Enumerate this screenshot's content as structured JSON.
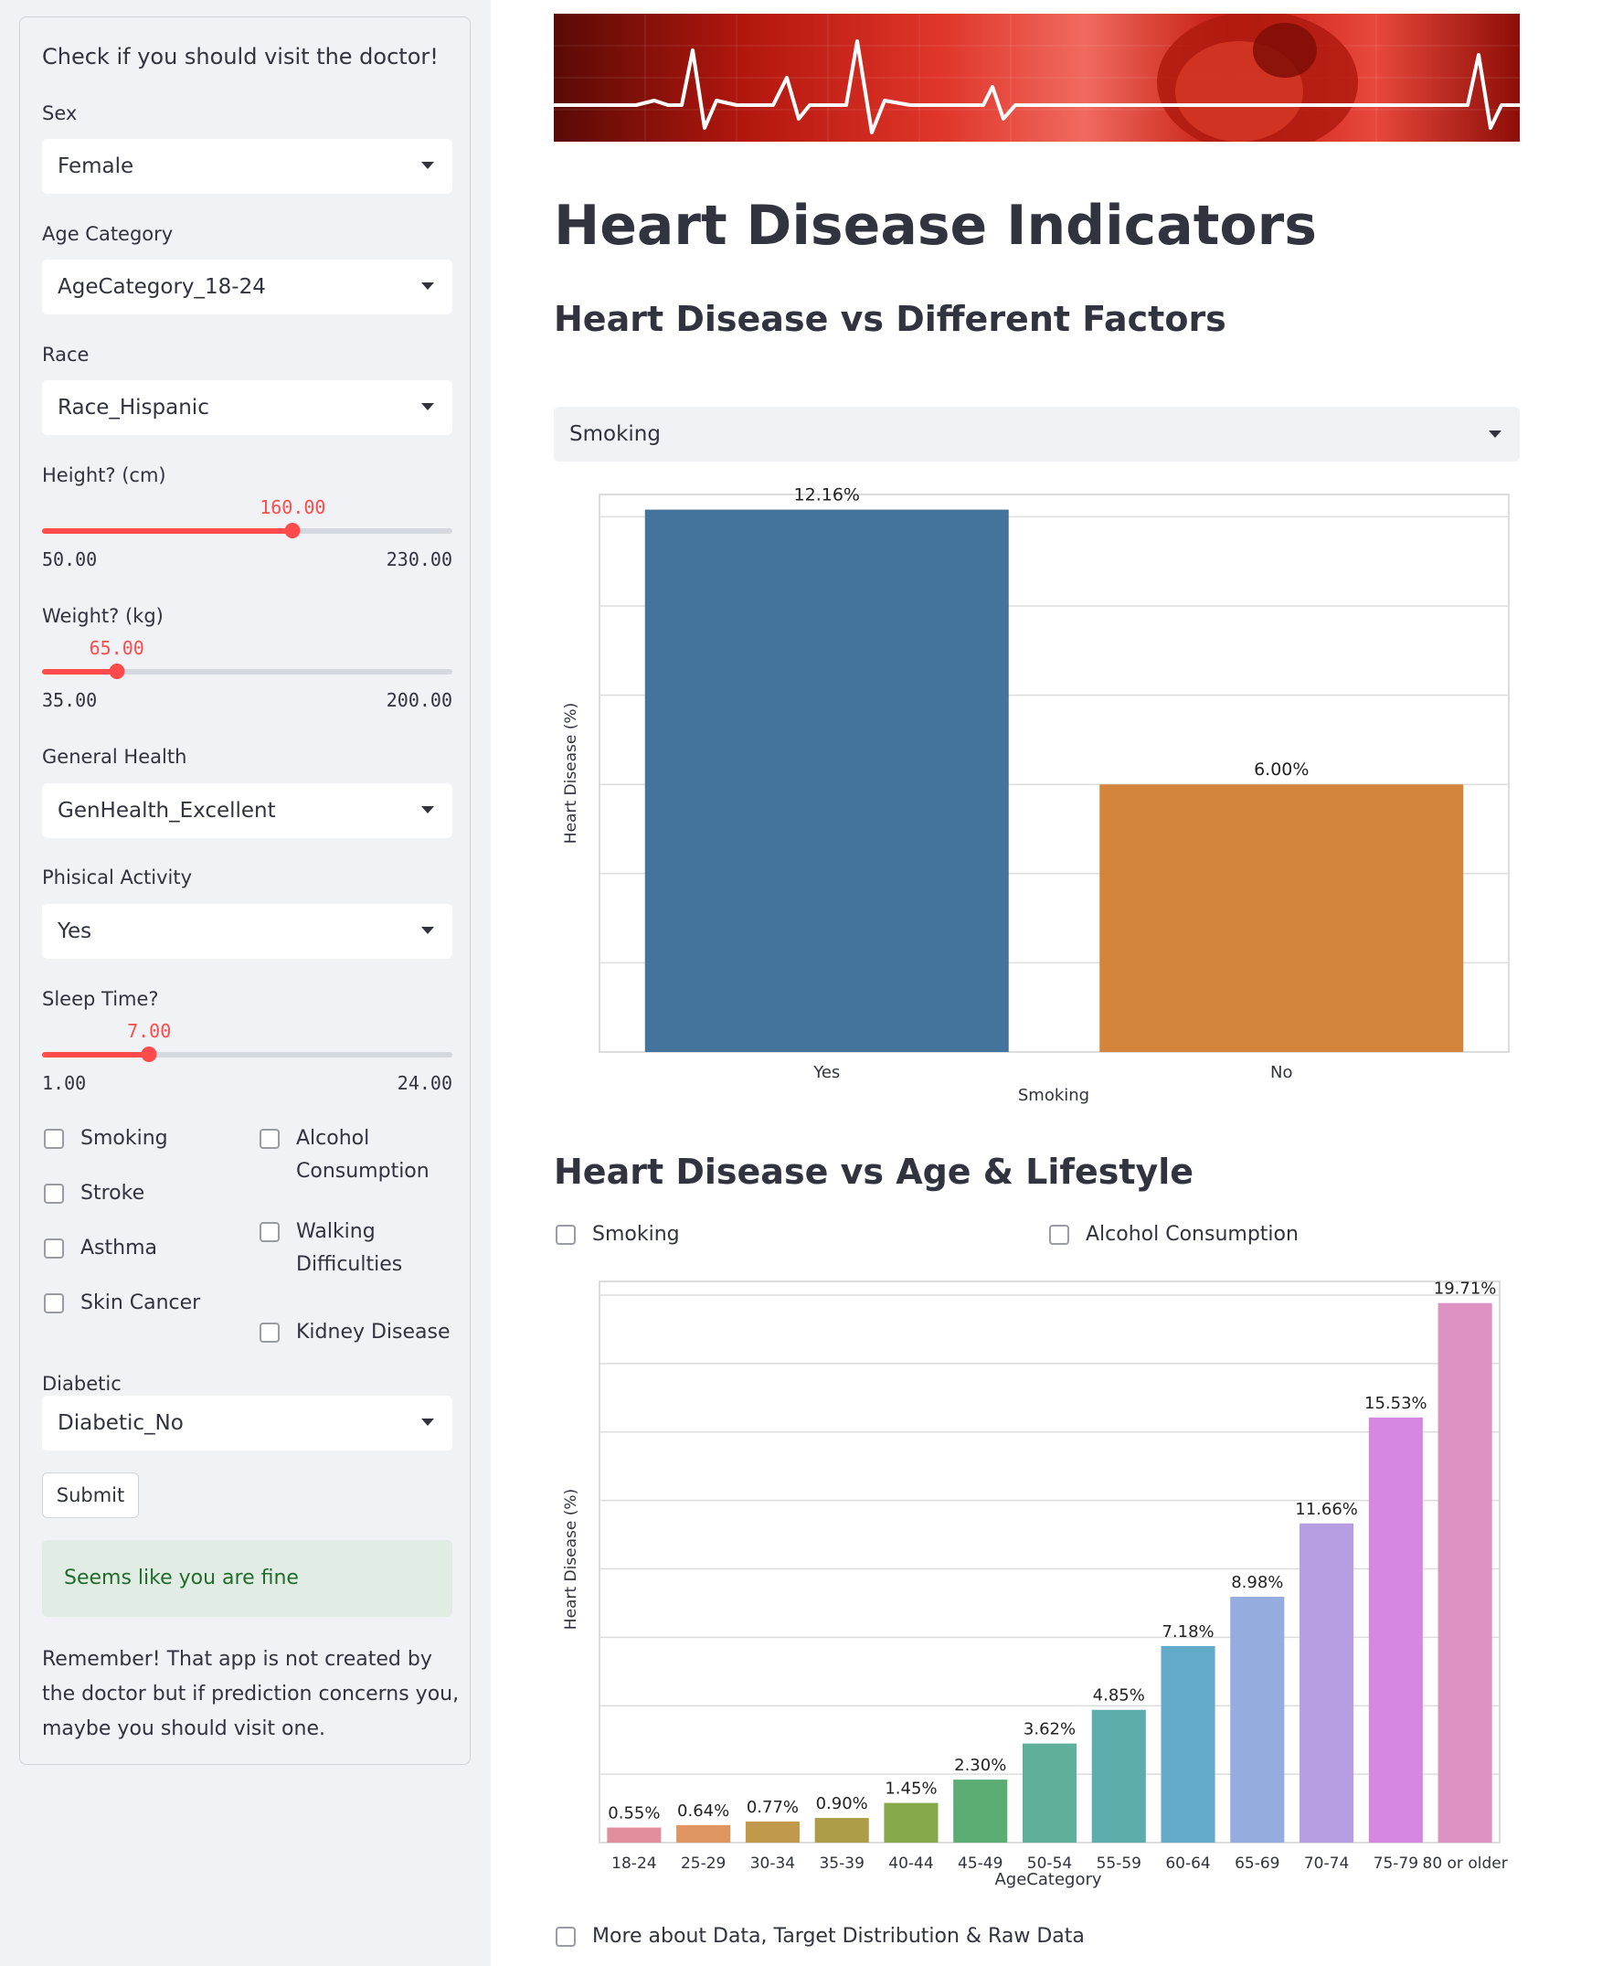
{
  "sidebar": {
    "heading": "Check if you should visit the doctor!",
    "sex": {
      "label": "Sex",
      "value": "Female"
    },
    "age": {
      "label": "Age Category",
      "value": "AgeCategory_18-24"
    },
    "race": {
      "label": "Race",
      "value": "Race_Hispanic"
    },
    "height": {
      "label": "Height? (cm)",
      "value": "160.00",
      "min": "50.00",
      "max": "230.00",
      "fraction": 0.611
    },
    "weight": {
      "label": "Weight? (kg)",
      "value": "65.00",
      "min": "35.00",
      "max": "200.00",
      "fraction": 0.182
    },
    "gen_health": {
      "label": "General Health",
      "value": "GenHealth_Excellent"
    },
    "activity": {
      "label": "Phisical Activity",
      "value": "Yes"
    },
    "sleep": {
      "label": "Sleep Time?",
      "value": "7.00",
      "min": "1.00",
      "max": "24.00",
      "fraction": 0.261
    },
    "checkboxes": {
      "smoking": "Smoking",
      "stroke": "Stroke",
      "asthma": "Asthma",
      "skin_cancer": "Skin Cancer",
      "alcohol_line1": "Alcohol",
      "alcohol_line2": "Consumption",
      "walking_line1": "Walking",
      "walking_line2": "Difficulties",
      "kidney": "Kidney Disease"
    },
    "diabetic": {
      "label": "Diabetic",
      "value": "Diabetic_No"
    },
    "submit_label": "Submit",
    "result": "Seems like you are fine",
    "note": "Remember! That app is not created by the doctor but if prediction concerns you, maybe you should visit one."
  },
  "main": {
    "title": "Heart Disease Indicators",
    "section1": "Heart Disease vs Different Factors",
    "factor_select": "Smoking",
    "section2": "Heart Disease vs Age & Lifestyle",
    "lifestyle_checkboxes": {
      "smoking": "Smoking",
      "alcohol": "Alcohol Consumption"
    },
    "more_data": "More about Data, Target Distribution & Raw Data"
  },
  "colors": {
    "accent": "#ff4b4b",
    "success_bg": "#e1ede4",
    "success_text": "#216c2a"
  },
  "chart_data": [
    {
      "type": "bar",
      "categories": [
        "Yes",
        "No"
      ],
      "values": [
        12.16,
        6.0
      ],
      "labels": [
        "12.16%",
        "6.00%"
      ],
      "colors": [
        "#44739c",
        "#d5843c"
      ],
      "xlabel": "Smoking",
      "ylabel": "Heart Disease (%)",
      "ylim": [
        0,
        12.5
      ],
      "grid": true
    },
    {
      "type": "bar",
      "categories": [
        "18-24",
        "25-29",
        "30-34",
        "35-39",
        "40-44",
        "45-49",
        "50-54",
        "55-59",
        "60-64",
        "65-69",
        "70-74",
        "75-79",
        "80 or older"
      ],
      "values": [
        0.55,
        0.64,
        0.77,
        0.9,
        1.45,
        2.3,
        3.62,
        4.85,
        7.18,
        8.98,
        11.66,
        15.53,
        19.71
      ],
      "labels": [
        "0.55%",
        "0.64%",
        "0.77%",
        "0.90%",
        "1.45%",
        "2.30%",
        "3.62%",
        "4.85%",
        "7.18%",
        "8.98%",
        "11.66%",
        "15.53%",
        "19.71%"
      ],
      "colors": [
        "#e38e9c",
        "#de9560",
        "#c09a4a",
        "#ad9d49",
        "#86a94b",
        "#5cad73",
        "#5fb09b",
        "#5dadad",
        "#64abc9",
        "#95acdf",
        "#b79de1",
        "#d688e0",
        "#de92c3"
      ],
      "xlabel": "AgeCategory",
      "ylabel": "Heart Disease (%)",
      "ylim": [
        0,
        20.5
      ],
      "grid": true
    }
  ]
}
